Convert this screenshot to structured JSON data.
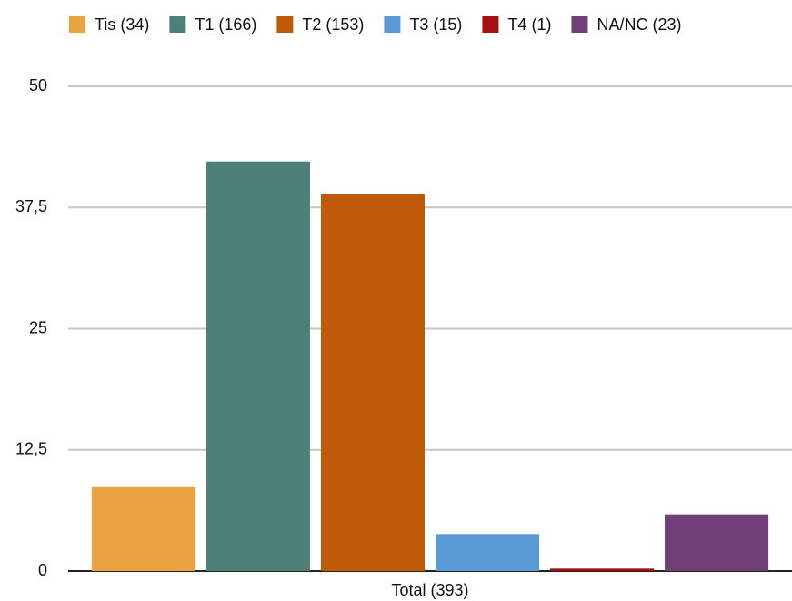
{
  "chart_data": {
    "type": "bar",
    "categories": [
      "Total (393)"
    ],
    "series": [
      {
        "name": "Tis (34)",
        "color": "#e9a441",
        "values": [
          8.65
        ]
      },
      {
        "name": "T1 (166)",
        "color": "#4e8078",
        "values": [
          42.24
        ]
      },
      {
        "name": "T2 (153)",
        "color": "#bf5b08",
        "values": [
          38.93
        ]
      },
      {
        "name": "T3 (15)",
        "color": "#5b9bd5",
        "values": [
          3.82
        ]
      },
      {
        "name": "T4 (1)",
        "color": "#a50f0f",
        "values": [
          0.25
        ]
      },
      {
        "name": "NA/NC (23)",
        "color": "#713f78",
        "values": [
          5.85
        ]
      }
    ],
    "ylim": [
      0,
      50
    ],
    "yticks": [
      0,
      {
        "value": 12.5,
        "label": "12,5"
      },
      25,
      {
        "value": 37.5,
        "label": "37,5"
      },
      50
    ],
    "grid": true,
    "legend": "top"
  }
}
